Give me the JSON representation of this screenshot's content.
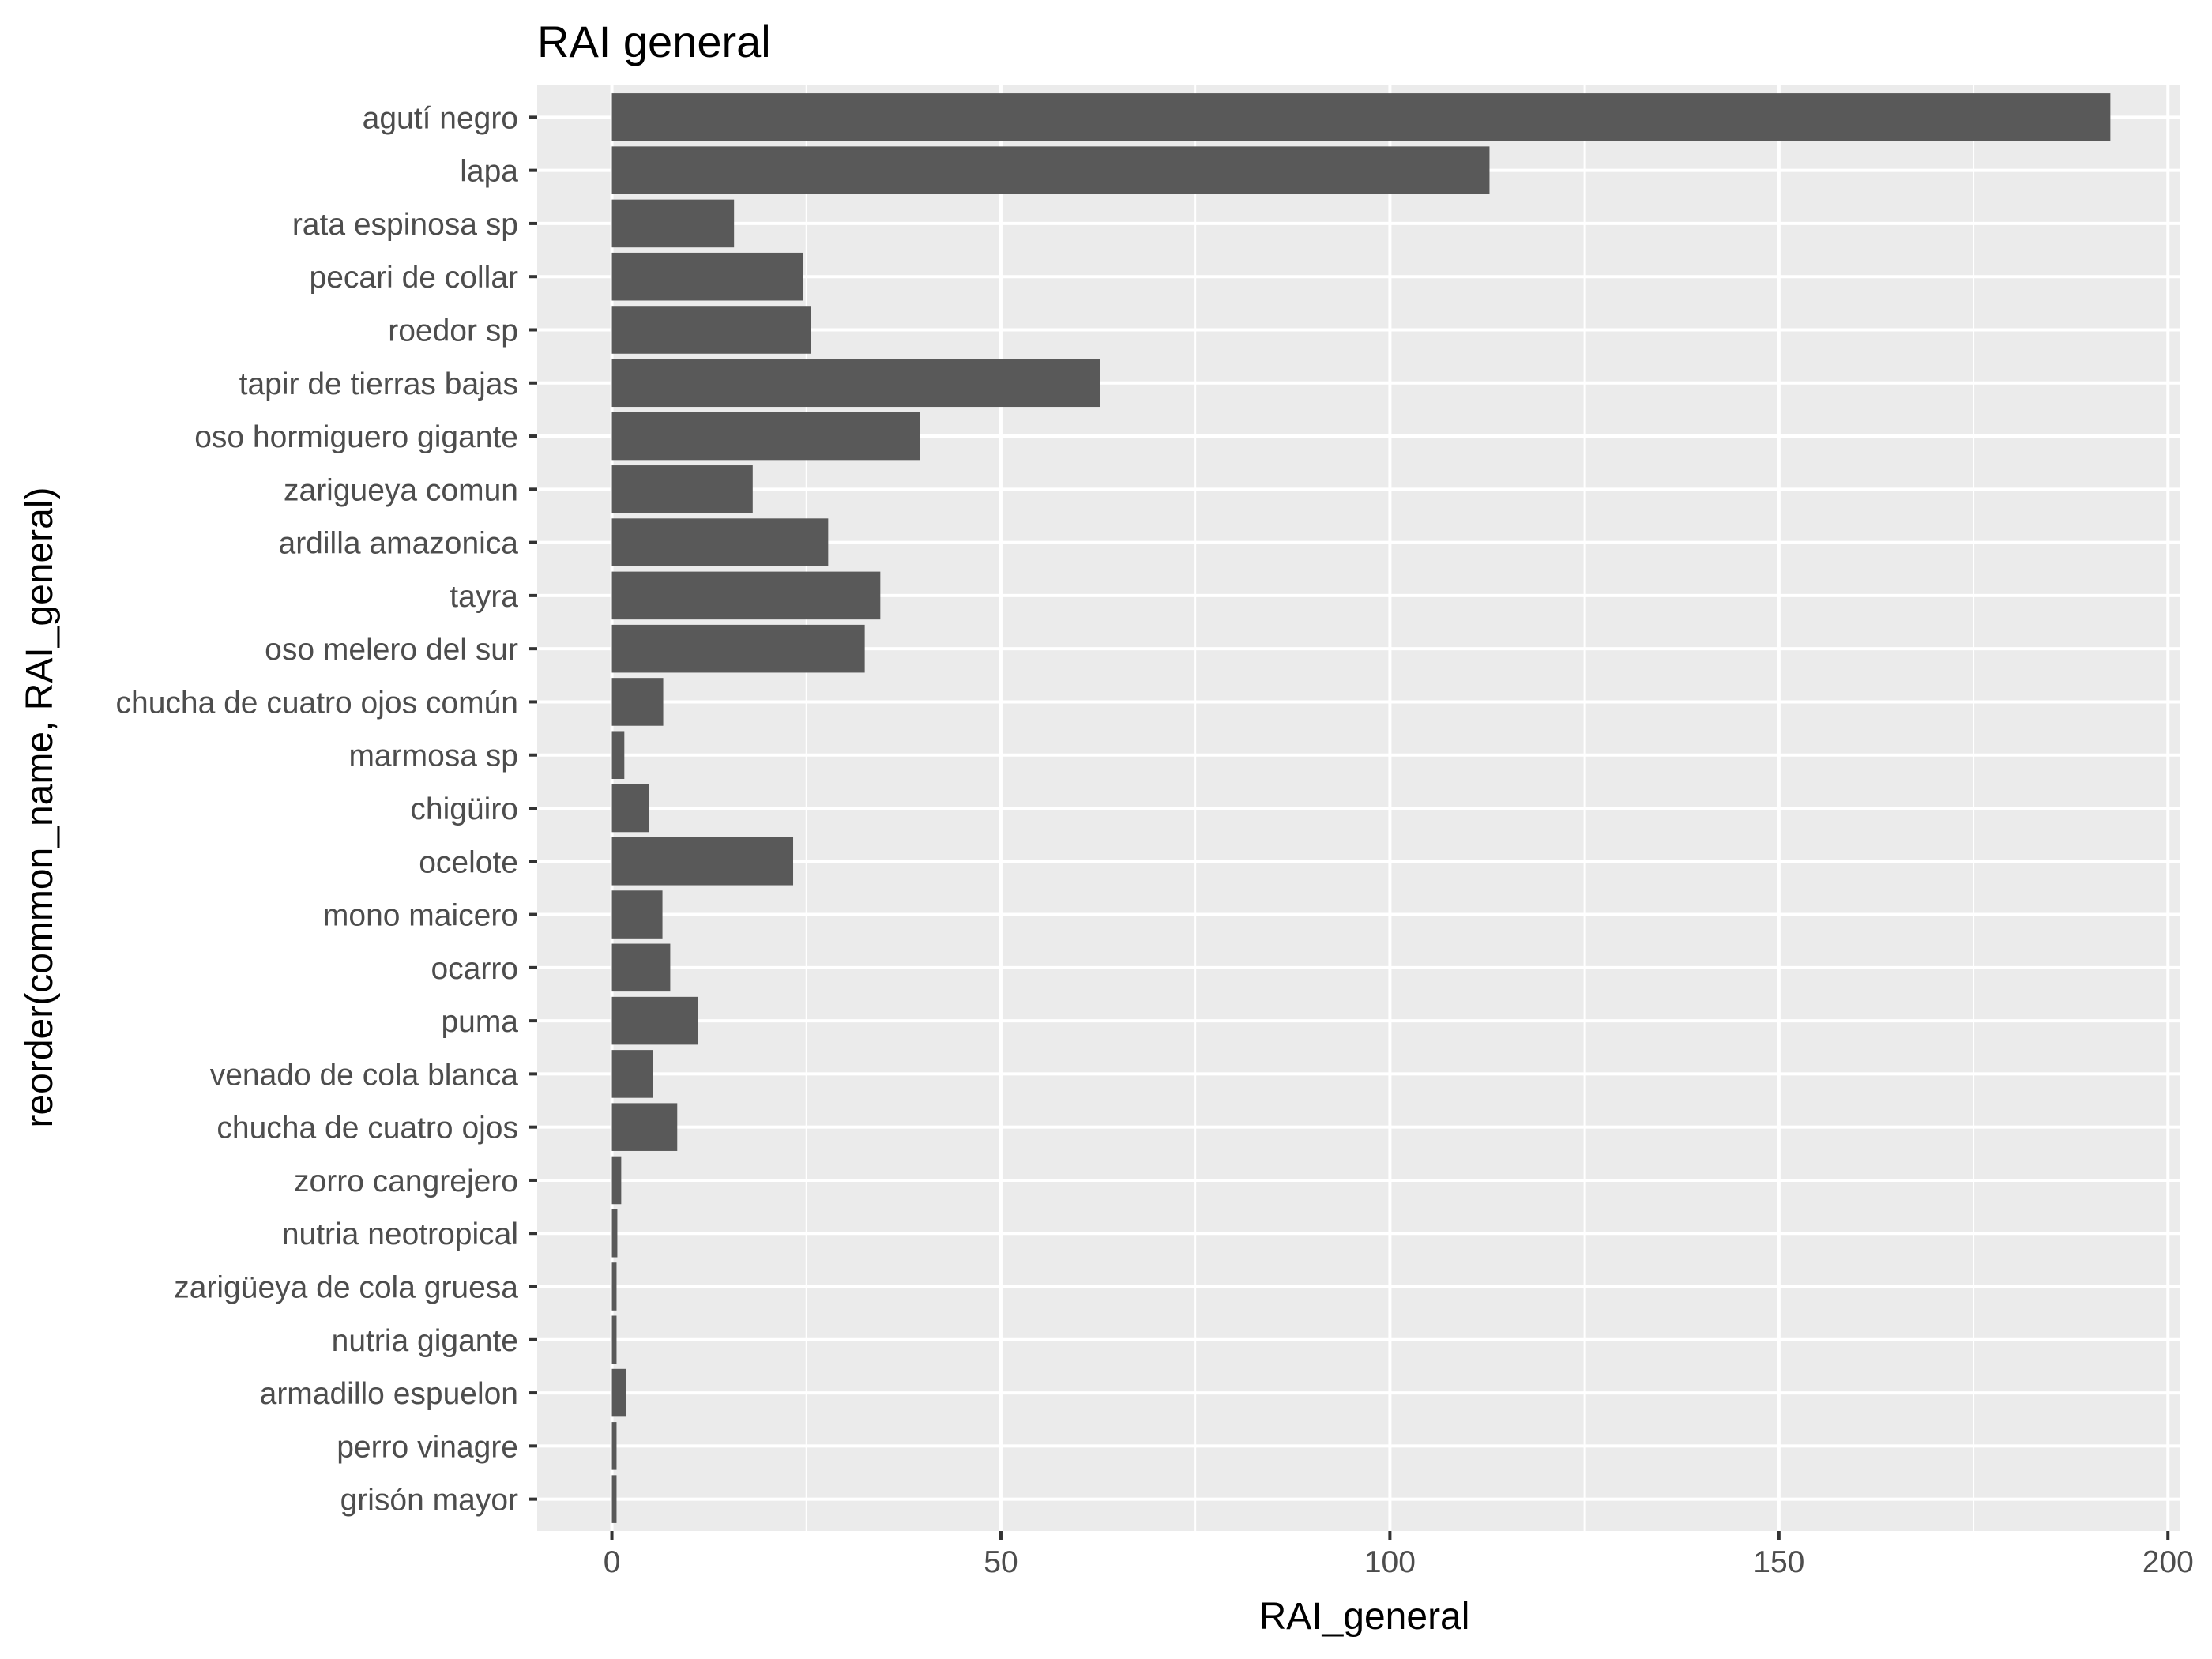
{
  "chart_data": {
    "type": "bar",
    "orientation": "horizontal",
    "title": "RAI general",
    "xlabel": "RAI_general",
    "ylabel": "reorder(common_name, RAI_general)",
    "xlim": [
      -9.6,
      201.6
    ],
    "x_ticks": [
      "0",
      "50",
      "100",
      "150",
      "200"
    ],
    "grid": true,
    "bar_color": "#595959",
    "panel_background": "#ebebeb",
    "grid_color": "#ffffff",
    "categories": [
      "agutí negro",
      "lapa",
      "rata espinosa sp",
      "pecari de collar",
      "roedor sp",
      "tapir de tierras bajas",
      "oso hormiguero gigante",
      "zarigueya comun",
      "ardilla amazonica",
      "tayra",
      "oso melero del sur",
      "chucha de cuatro ojos común",
      "marmosa sp",
      "chigüiro",
      "ocelote",
      "mono maicero",
      "ocarro",
      "puma",
      "venado de cola blanca",
      "chucha de cuatro ojos",
      "zorro cangrejero",
      "nutria neotropical",
      "zarigüeya de cola gruesa ",
      "nutria gigante",
      "armadillo espuelon",
      "perro vinagre",
      "grisón mayor"
    ],
    "values": [
      192.6,
      112.8,
      15.7,
      24.6,
      25.6,
      62.7,
      39.6,
      18.1,
      27.8,
      34.5,
      32.5,
      6.6,
      1.6,
      4.8,
      23.3,
      6.5,
      7.5,
      11.1,
      5.3,
      8.4,
      1.2,
      0.7,
      0.6,
      0.6,
      1.8,
      0.6,
      0.6
    ]
  }
}
